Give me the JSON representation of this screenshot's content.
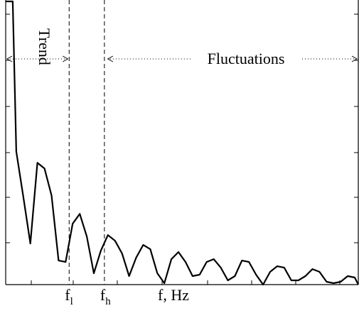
{
  "chart_data": {
    "type": "line",
    "title": "",
    "xlabel": "f, Hz",
    "ylabel": "",
    "grid": false,
    "legend": "none",
    "xlim": [
      0,
      50
    ],
    "ylim": [
      0,
      100
    ],
    "x_marker_labels": [
      {
        "sub": "l",
        "base": "f"
      },
      {
        "sub": "h",
        "base": "f"
      }
    ],
    "markers": {
      "f_l": 9,
      "f_h": 14
    },
    "regions": {
      "trend": {
        "label": "Trend",
        "from": 0,
        "to": 9
      },
      "fluctuations": {
        "label": "Fluctuations",
        "from": 14,
        "to": 50
      }
    },
    "series": [
      {
        "x": [
          0.0,
          1.0,
          1.5,
          2.5,
          3.5,
          4.5,
          5.5,
          6.5,
          7.5,
          8.5,
          9.5,
          10.5,
          11.5,
          12.5,
          13.5,
          14.5,
          15.5,
          16.5,
          17.5,
          18.5,
          19.5,
          20.5,
          21.5,
          22.5,
          23.5,
          24.5,
          25.5,
          26.5,
          27.5,
          28.5,
          29.5,
          30.5,
          31.5,
          32.5,
          33.5,
          34.5,
          35.5,
          36.5,
          37.5,
          38.5,
          39.5,
          40.5,
          41.5,
          42.5,
          43.5,
          44.5,
          45.5,
          46.5,
          47.5,
          48.5,
          49.5,
          50.0
        ],
        "y": [
          100.0,
          100.0,
          47.0,
          31.0,
          14.5,
          43.0,
          41.0,
          31.5,
          8.5,
          8.0,
          21.5,
          25.0,
          17.0,
          4.0,
          12.0,
          17.5,
          15.5,
          11.0,
          3.0,
          9.5,
          14.0,
          12.5,
          4.0,
          0.5,
          9.0,
          11.5,
          8.0,
          3.0,
          3.5,
          8.0,
          9.0,
          6.0,
          1.5,
          3.0,
          8.5,
          8.0,
          3.5,
          0.0,
          4.5,
          6.5,
          6.0,
          1.5,
          1.5,
          3.0,
          5.5,
          4.5,
          1.0,
          0.5,
          1.0,
          3.0,
          2.5,
          0.0
        ]
      }
    ]
  }
}
